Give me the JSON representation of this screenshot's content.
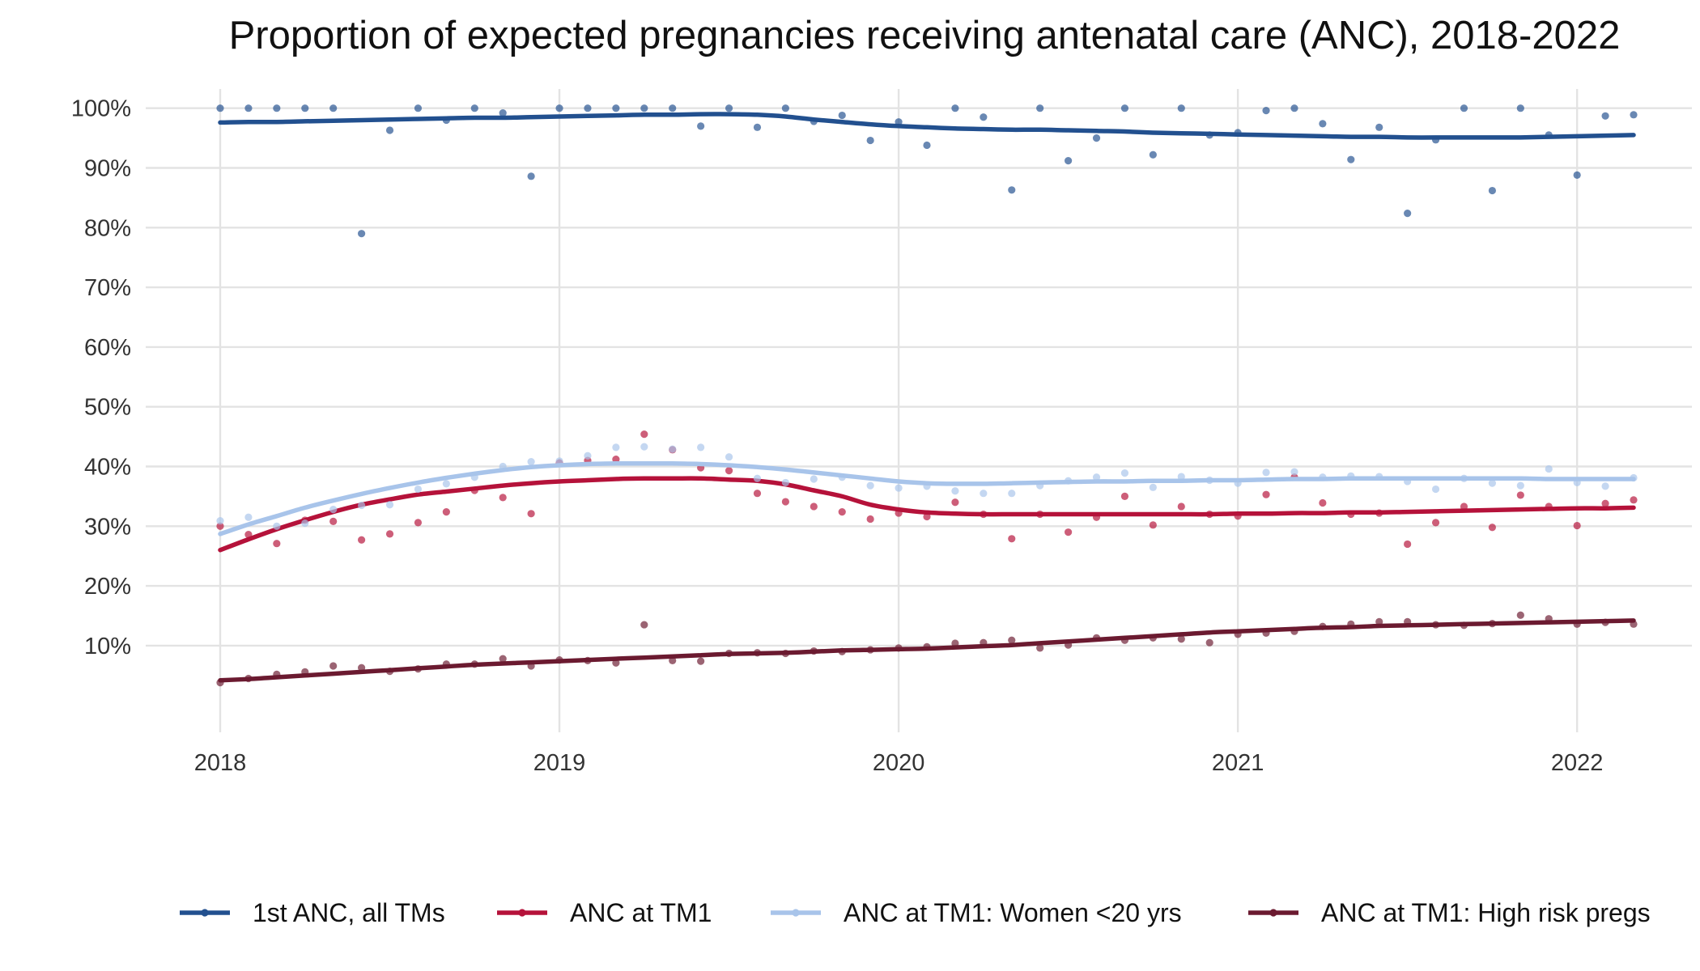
{
  "chart_data": {
    "type": "scatter",
    "title": "Proportion of expected pregnancies receiving antenatal care (ANC), 2018-2022",
    "xlabel": "",
    "ylabel": "",
    "x_ticks": [
      "2018",
      "2019",
      "2020",
      "2021",
      "2022"
    ],
    "y_ticks": [
      "10%",
      "20%",
      "30%",
      "40%",
      "50%",
      "60%",
      "70%",
      "80%",
      "90%",
      "100%"
    ],
    "xlim": [
      "2018-01",
      "2022-03"
    ],
    "ylim": [
      0,
      100
    ],
    "grid": true,
    "legend_position": "bottom",
    "months": [
      "2018-01",
      "2018-02",
      "2018-03",
      "2018-04",
      "2018-05",
      "2018-06",
      "2018-07",
      "2018-08",
      "2018-09",
      "2018-10",
      "2018-11",
      "2018-12",
      "2019-01",
      "2019-02",
      "2019-03",
      "2019-04",
      "2019-05",
      "2019-06",
      "2019-07",
      "2019-08",
      "2019-09",
      "2019-10",
      "2019-11",
      "2019-12",
      "2020-01",
      "2020-02",
      "2020-03",
      "2020-04",
      "2020-05",
      "2020-06",
      "2020-07",
      "2020-08",
      "2020-09",
      "2020-10",
      "2020-11",
      "2020-12",
      "2021-01",
      "2021-02",
      "2021-03",
      "2021-04",
      "2021-05",
      "2021-06",
      "2021-07",
      "2021-08",
      "2021-09",
      "2021-10",
      "2021-11",
      "2021-12",
      "2022-01",
      "2022-02",
      "2022-03"
    ],
    "series": [
      {
        "name": "1st ANC, all TMs",
        "color": "#22508f",
        "values": [
          100,
          100,
          100,
          100,
          100,
          79,
          96.3,
          100,
          98,
          100,
          99.2,
          88.6,
          100,
          100,
          100,
          100,
          100,
          97,
          100,
          96.8,
          100,
          97.8,
          98.8,
          94.6,
          97.7,
          93.8,
          100,
          98.5,
          86.3,
          100,
          91.2,
          95,
          100,
          92.2,
          100,
          95.5,
          95.9,
          99.6,
          100,
          97.4,
          91.4,
          96.8,
          82.4,
          94.7,
          100,
          86.2,
          100,
          95.5,
          88.8,
          98.7,
          98.9
        ],
        "trend": [
          97.6,
          97.7,
          97.7,
          97.8,
          97.9,
          98,
          98.1,
          98.2,
          98.3,
          98.4,
          98.4,
          98.5,
          98.6,
          98.7,
          98.8,
          98.9,
          98.9,
          99,
          99,
          98.9,
          98.6,
          98.1,
          97.7,
          97.3,
          97,
          96.8,
          96.6,
          96.5,
          96.4,
          96.4,
          96.3,
          96.2,
          96.1,
          95.9,
          95.8,
          95.7,
          95.6,
          95.5,
          95.4,
          95.3,
          95.2,
          95.2,
          95.1,
          95.1,
          95.1,
          95.1,
          95.1,
          95.2,
          95.3,
          95.4,
          95.5
        ]
      },
      {
        "name": "ANC at TM1",
        "color": "#b5123a",
        "values": [
          30,
          28.6,
          27.1,
          31,
          30.8,
          27.7,
          28.7,
          30.6,
          32.4,
          36,
          34.8,
          32.1,
          40.6,
          41,
          41.2,
          45.4,
          42.8,
          39.8,
          39.3,
          35.5,
          34.1,
          33.3,
          32.4,
          31.2,
          32.2,
          31.6,
          34,
          32,
          27.9,
          32,
          29,
          31.5,
          35,
          30.2,
          33.3,
          32,
          31.7,
          35.3,
          38.2,
          33.9,
          32,
          32.2,
          27,
          30.6,
          33.3,
          29.8,
          35.2,
          33.3,
          30.1,
          33.8,
          34.4
        ],
        "trend": [
          26,
          27.8,
          29.5,
          31,
          32.4,
          33.6,
          34.5,
          35.3,
          35.8,
          36.3,
          36.8,
          37.2,
          37.5,
          37.7,
          37.9,
          38,
          38,
          38,
          37.8,
          37.6,
          37,
          36,
          35,
          33.6,
          32.8,
          32.3,
          32.1,
          32,
          32,
          32,
          32,
          32,
          32,
          32,
          32,
          32,
          32.1,
          32.1,
          32.2,
          32.2,
          32.3,
          32.3,
          32.4,
          32.5,
          32.6,
          32.7,
          32.8,
          32.9,
          33,
          33,
          33.1
        ]
      },
      {
        "name": "ANC at TM1: Women <20 yrs",
        "color": "#a8c4ea",
        "values": [
          30.9,
          31.5,
          30,
          30.5,
          32.8,
          33.5,
          33.6,
          36.2,
          37.1,
          38.2,
          40,
          40.8,
          40.9,
          41.8,
          43.2,
          43.3,
          42.9,
          43.2,
          41.6,
          38,
          37.3,
          37.9,
          38.2,
          36.8,
          36.4,
          36.7,
          35.9,
          35.5,
          35.5,
          36.8,
          37.6,
          38.2,
          38.9,
          36.5,
          38.3,
          37.7,
          37.2,
          39,
          39.1,
          38.2,
          38.4,
          38.3,
          37.5,
          36.2,
          38,
          37.2,
          36.8,
          39.6,
          37.3,
          36.7,
          38.1
        ],
        "trend": [
          28.7,
          30.3,
          31.7,
          33.1,
          34.3,
          35.4,
          36.4,
          37.3,
          38.1,
          38.8,
          39.4,
          39.9,
          40.2,
          40.4,
          40.5,
          40.5,
          40.5,
          40.4,
          40.2,
          39.9,
          39.5,
          39,
          38.5,
          38,
          37.5,
          37.2,
          37.1,
          37.1,
          37.2,
          37.3,
          37.4,
          37.5,
          37.5,
          37.6,
          37.6,
          37.7,
          37.7,
          37.8,
          37.9,
          37.9,
          38,
          38,
          38,
          38,
          38,
          38,
          38,
          37.9,
          37.9,
          37.9,
          37.9
        ]
      },
      {
        "name": "ANC at TM1: High risk pregs",
        "color": "#6b1a30",
        "values": [
          3.8,
          4.5,
          5.2,
          5.6,
          6.6,
          6.3,
          5.7,
          6.1,
          6.9,
          6.9,
          7.8,
          6.6,
          7.6,
          7.5,
          7.1,
          13.5,
          7.5,
          7.4,
          8.7,
          8.8,
          8.7,
          9.1,
          9,
          9.3,
          9.6,
          9.8,
          10.4,
          10.5,
          10.9,
          9.6,
          10.1,
          11.3,
          10.9,
          11.3,
          11.1,
          10.5,
          11.9,
          12.1,
          12.4,
          13.2,
          13.6,
          14,
          14,
          13.5,
          13.4,
          13.7,
          15.1,
          14.5,
          13.6,
          13.9,
          13.6
        ],
        "trend": [
          4.2,
          4.4,
          4.7,
          5,
          5.3,
          5.6,
          5.9,
          6.2,
          6.5,
          6.8,
          7,
          7.2,
          7.4,
          7.6,
          7.8,
          8,
          8.2,
          8.4,
          8.6,
          8.7,
          8.8,
          9,
          9.2,
          9.3,
          9.4,
          9.5,
          9.7,
          9.9,
          10.1,
          10.4,
          10.7,
          11,
          11.3,
          11.6,
          11.9,
          12.2,
          12.4,
          12.6,
          12.8,
          13,
          13.1,
          13.3,
          13.4,
          13.5,
          13.6,
          13.7,
          13.8,
          13.9,
          14,
          14.1,
          14.2
        ]
      }
    ]
  }
}
